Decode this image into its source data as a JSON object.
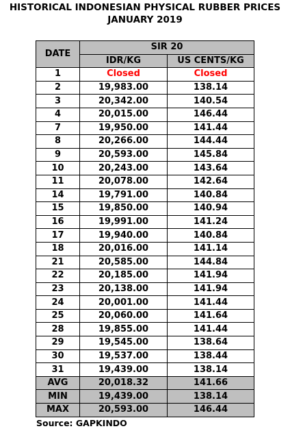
{
  "title_line1": "HISTORICAL INDONESIAN PHYSICAL RUBBER PRICES",
  "title_line2": "JANUARY 2019",
  "header": {
    "date": "DATE",
    "group": "SIR 20",
    "idr": "IDR/KG",
    "usd": "US CENTS/KG"
  },
  "rows": [
    {
      "date": "1",
      "idr": "Closed",
      "usd": "Closed",
      "closed": true
    },
    {
      "date": "2",
      "idr": "19,983.00",
      "usd": "138.14"
    },
    {
      "date": "3",
      "idr": "20,342.00",
      "usd": "140.54"
    },
    {
      "date": "4",
      "idr": "20,015.00",
      "usd": "146.44"
    },
    {
      "date": "7",
      "idr": "19,950.00",
      "usd": "141.44"
    },
    {
      "date": "8",
      "idr": "20,266.00",
      "usd": "144.44"
    },
    {
      "date": "9",
      "idr": "20,593.00",
      "usd": "145.84"
    },
    {
      "date": "10",
      "idr": "20,243.00",
      "usd": "143.64"
    },
    {
      "date": "11",
      "idr": "20,078.00",
      "usd": "142.64"
    },
    {
      "date": "14",
      "idr": "19,791.00",
      "usd": "140.84"
    },
    {
      "date": "15",
      "idr": "19,850.00",
      "usd": "140.94"
    },
    {
      "date": "16",
      "idr": "19,991.00",
      "usd": "141.24"
    },
    {
      "date": "17",
      "idr": "19,940.00",
      "usd": "140.84"
    },
    {
      "date": "18",
      "idr": "20,016.00",
      "usd": "141.14"
    },
    {
      "date": "21",
      "idr": "20,585.00",
      "usd": "144.84"
    },
    {
      "date": "22",
      "idr": "20,185.00",
      "usd": "141.94"
    },
    {
      "date": "23",
      "idr": "20,138.00",
      "usd": "141.94"
    },
    {
      "date": "24",
      "idr": "20,001.00",
      "usd": "141.44"
    },
    {
      "date": "25",
      "idr": "20,060.00",
      "usd": "141.64"
    },
    {
      "date": "28",
      "idr": "19,855.00",
      "usd": "141.44"
    },
    {
      "date": "29",
      "idr": "19,545.00",
      "usd": "138.64"
    },
    {
      "date": "30",
      "idr": "19,537.00",
      "usd": "138.44"
    },
    {
      "date": "31",
      "idr": "19,439.00",
      "usd": "138.14"
    }
  ],
  "summary": [
    {
      "label": "AVG",
      "idr": "20,018.32",
      "usd": "141.66"
    },
    {
      "label": "MIN",
      "idr": "19,439.00",
      "usd": "138.14"
    },
    {
      "label": "MAX",
      "idr": "20,593.00",
      "usd": "146.44"
    }
  ],
  "source": "Source: GAPKINDO",
  "colors": {
    "header_fill": "#bfbfbf",
    "closed_text": "#ff0000"
  }
}
